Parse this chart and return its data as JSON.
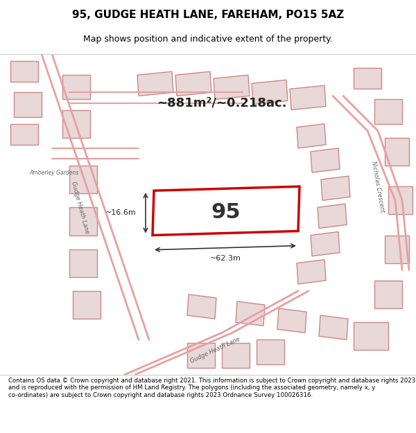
{
  "title_line1": "95, GUDGE HEATH LANE, FAREHAM, PO15 5AZ",
  "title_line2": "Map shows position and indicative extent of the property.",
  "area_text": "~881m²/~0.218ac.",
  "property_number": "95",
  "dim_width": "~62.3m",
  "dim_height": "~16.6m",
  "footer_text": "Contains OS data © Crown copyright and database right 2021. This information is subject to Crown copyright and database rights 2023 and is reproduced with the permission of HM Land Registry. The polygons (including the associated geometry, namely x, y co-ordinates) are subject to Crown copyright and database rights 2023 Ordnance Survey 100026316.",
  "map_bg": "#f2f2f2",
  "road_line_color": "#e8a0a0",
  "building_fill": "#e8d8d8",
  "building_edge": "#cc8888",
  "highlight_fill": "#ffffff",
  "highlight_edge": "#cc0000",
  "title_bg": "#ffffff",
  "footer_bg": "#ffffff"
}
